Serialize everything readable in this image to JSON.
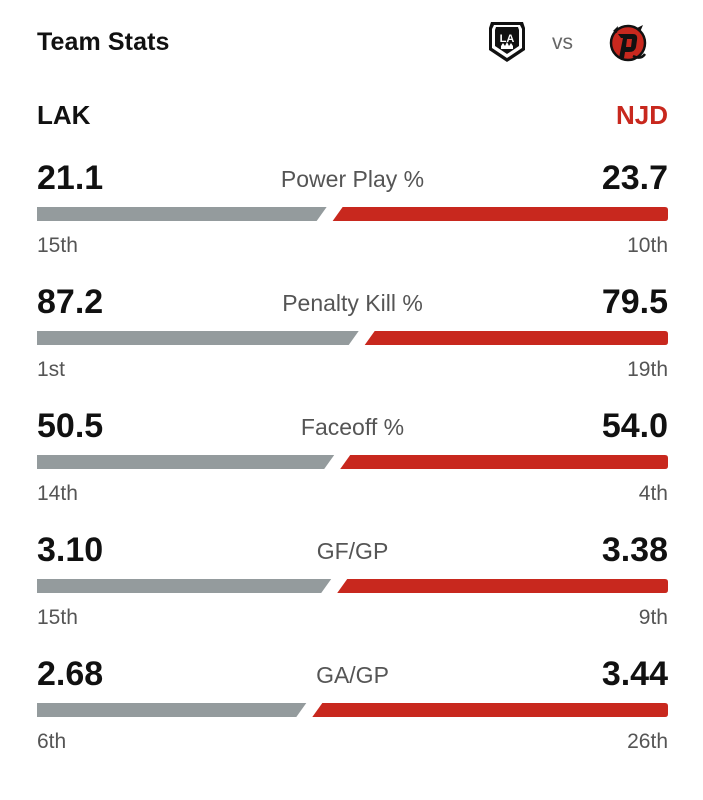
{
  "header": {
    "title": "Team Stats",
    "vs": "vs",
    "home_logo_icon": "la-kings-logo-icon",
    "away_logo_icon": "nj-devils-logo-icon",
    "home_logo_text": "LA"
  },
  "teams": {
    "home": "LAK",
    "away": "NJD"
  },
  "colors": {
    "home_bar": "#949b9d",
    "away_bar": "#c8281e",
    "away_text": "#c8281e"
  },
  "stats": [
    {
      "label": "Power Play %",
      "home_value": "21.1",
      "away_value": "23.7",
      "home_rank": "15th",
      "away_rank": "10th",
      "home_num": 21.1,
      "away_num": 23.7
    },
    {
      "label": "Penalty Kill %",
      "home_value": "87.2",
      "away_value": "79.5",
      "home_rank": "1st",
      "away_rank": "19th",
      "home_num": 87.2,
      "away_num": 79.5
    },
    {
      "label": "Faceoff %",
      "home_value": "50.5",
      "away_value": "54.0",
      "home_rank": "14th",
      "away_rank": "4th",
      "home_num": 50.5,
      "away_num": 54.0
    },
    {
      "label": "GF/GP",
      "home_value": "3.10",
      "away_value": "3.38",
      "home_rank": "15th",
      "away_rank": "9th",
      "home_num": 3.1,
      "away_num": 3.38
    },
    {
      "label": "GA/GP",
      "home_value": "2.68",
      "away_value": "3.44",
      "home_rank": "6th",
      "away_rank": "26th",
      "home_num": 2.68,
      "away_num": 3.44
    }
  ]
}
